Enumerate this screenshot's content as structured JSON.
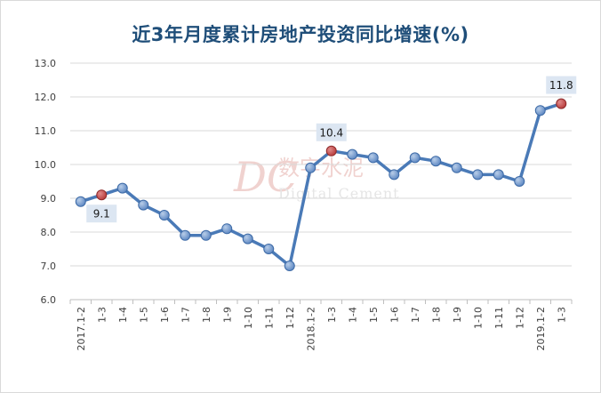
{
  "chart_data": {
    "type": "line",
    "title": "近3年月度累计房地产投资同比增速(%)",
    "xlabel": "",
    "ylabel": "",
    "ylim": [
      6.0,
      13.0
    ],
    "ytick_step": 1.0,
    "ytick_labels": [
      "6.0",
      "7.0",
      "8.0",
      "9.0",
      "10.0",
      "11.0",
      "12.0",
      "13.0"
    ],
    "grid": true,
    "legend": "none",
    "categories": [
      "2017.1-2",
      "1-3",
      "1-4",
      "1-5",
      "1-6",
      "1-7",
      "1-8",
      "1-9",
      "1-10",
      "1-11",
      "1-12",
      "2018.1-2",
      "1-3",
      "1-4",
      "1-5",
      "1-6",
      "1-7",
      "1-8",
      "1-9",
      "1-10",
      "1-11",
      "1-12",
      "2019.1-2",
      "1-3"
    ],
    "series": [
      {
        "values": [
          8.9,
          9.1,
          9.3,
          8.8,
          8.5,
          7.9,
          7.9,
          8.1,
          7.8,
          7.5,
          7.0,
          9.9,
          10.4,
          10.3,
          10.2,
          9.7,
          10.2,
          10.1,
          9.9,
          9.7,
          9.7,
          9.5,
          11.6,
          11.8
        ],
        "highlighted_indices": [
          1,
          12,
          23
        ],
        "data_labels": [
          {
            "index": 1,
            "text": "9.1",
            "position": "below"
          },
          {
            "index": 12,
            "text": "10.4",
            "position": "above"
          },
          {
            "index": 23,
            "text": "11.8",
            "position": "above"
          }
        ]
      }
    ],
    "colors": {
      "line": "#4a7ab7",
      "marker": "#5b86c2",
      "marker_highlight": "#b73a3a",
      "label_box": "#dce6f2",
      "grid": "#d9d9d9",
      "title": "#1f4e79"
    }
  },
  "watermark": {
    "logo_text": "DC",
    "cn_text": "数字水泥",
    "en_text": "Digital Cement"
  }
}
